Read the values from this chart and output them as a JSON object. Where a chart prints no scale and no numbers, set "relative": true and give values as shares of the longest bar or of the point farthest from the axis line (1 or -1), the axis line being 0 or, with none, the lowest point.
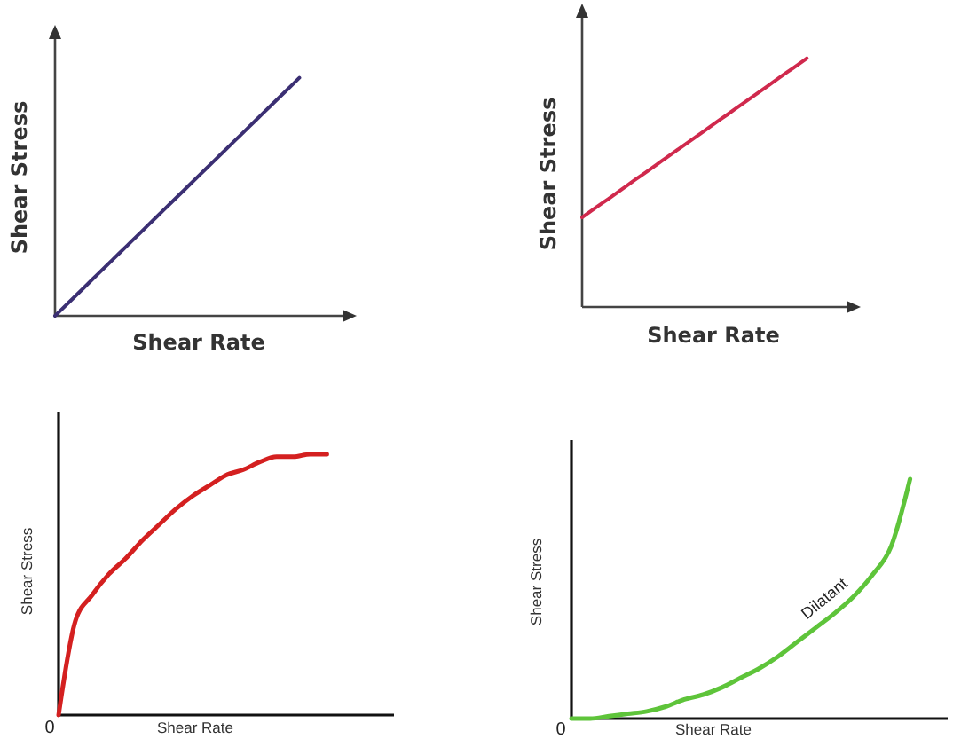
{
  "chart_data": [
    {
      "type": "line",
      "relative": true,
      "xlabel": "Shear Rate",
      "ylabel": "Shear Stress",
      "categories": [
        null,
        null,
        null,
        null,
        null,
        null,
        null,
        null,
        null,
        null,
        null,
        null,
        null,
        null,
        null,
        null,
        null,
        null,
        null,
        null,
        null
      ],
      "series": [
        {
          "color": "#3b2f73",
          "values": [
            0,
            0.0588,
            0.1176,
            0.1765,
            0.2353,
            0.2941,
            0.3529,
            0.4118,
            0.4706,
            0.5294,
            0.5882,
            0.6471,
            0.7059,
            0.7647,
            0.8235,
            0.8824,
            0.9412,
            1,
            null,
            null,
            null
          ]
        }
      ]
    },
    {
      "type": "line",
      "relative": true,
      "xlabel": "Shear Rate",
      "ylabel": "Shear Stress",
      "categories": [
        null,
        null,
        null,
        null,
        null,
        null,
        null,
        null,
        null,
        null,
        null,
        null,
        null,
        null,
        null,
        null,
        null,
        null,
        null,
        null,
        null
      ],
      "series": [
        {
          "color": "#d0294d",
          "values": [
            0.36,
            0.398,
            0.435,
            0.473,
            0.511,
            0.548,
            0.586,
            0.624,
            0.661,
            0.699,
            0.737,
            0.774,
            0.812,
            0.849,
            0.887,
            0.925,
            0.962,
            1,
            null,
            null,
            null
          ]
        }
      ]
    },
    {
      "type": "line",
      "relative": true,
      "xlabel": "Shear Rate",
      "ylabel": "Shear Stress",
      "annotations": [
        "0"
      ],
      "categories": [
        null,
        null,
        null,
        null,
        null,
        null,
        null,
        null,
        null,
        null,
        null,
        null,
        null,
        null,
        null,
        null,
        null,
        null,
        null,
        null,
        null
      ],
      "series": [
        {
          "color": "#d42020",
          "values": [
            0,
            0.36,
            0.46,
            0.54,
            0.6,
            0.67,
            0.73,
            0.79,
            0.84,
            0.88,
            0.92,
            0.94,
            0.97,
            0.99,
            0.99,
            1,
            1,
            null,
            null,
            null,
            null
          ]
        }
      ]
    },
    {
      "type": "line",
      "relative": true,
      "xlabel": "Shear Rate",
      "ylabel": "Shear Stress",
      "annotations": [
        "0"
      ],
      "categories": [
        null,
        null,
        null,
        null,
        null,
        null,
        null,
        null,
        null,
        null,
        null,
        null,
        null,
        null,
        null,
        null,
        null,
        null,
        null,
        null,
        null
      ],
      "series": [
        {
          "name": "Dilatant",
          "color": "#5ec43a",
          "values": [
            0,
            0,
            0.01,
            0.02,
            0.03,
            0.05,
            0.08,
            0.1,
            0.13,
            0.17,
            0.21,
            0.26,
            0.32,
            0.38,
            0.44,
            0.51,
            0.6,
            0.72,
            1,
            null,
            null
          ]
        }
      ]
    }
  ]
}
